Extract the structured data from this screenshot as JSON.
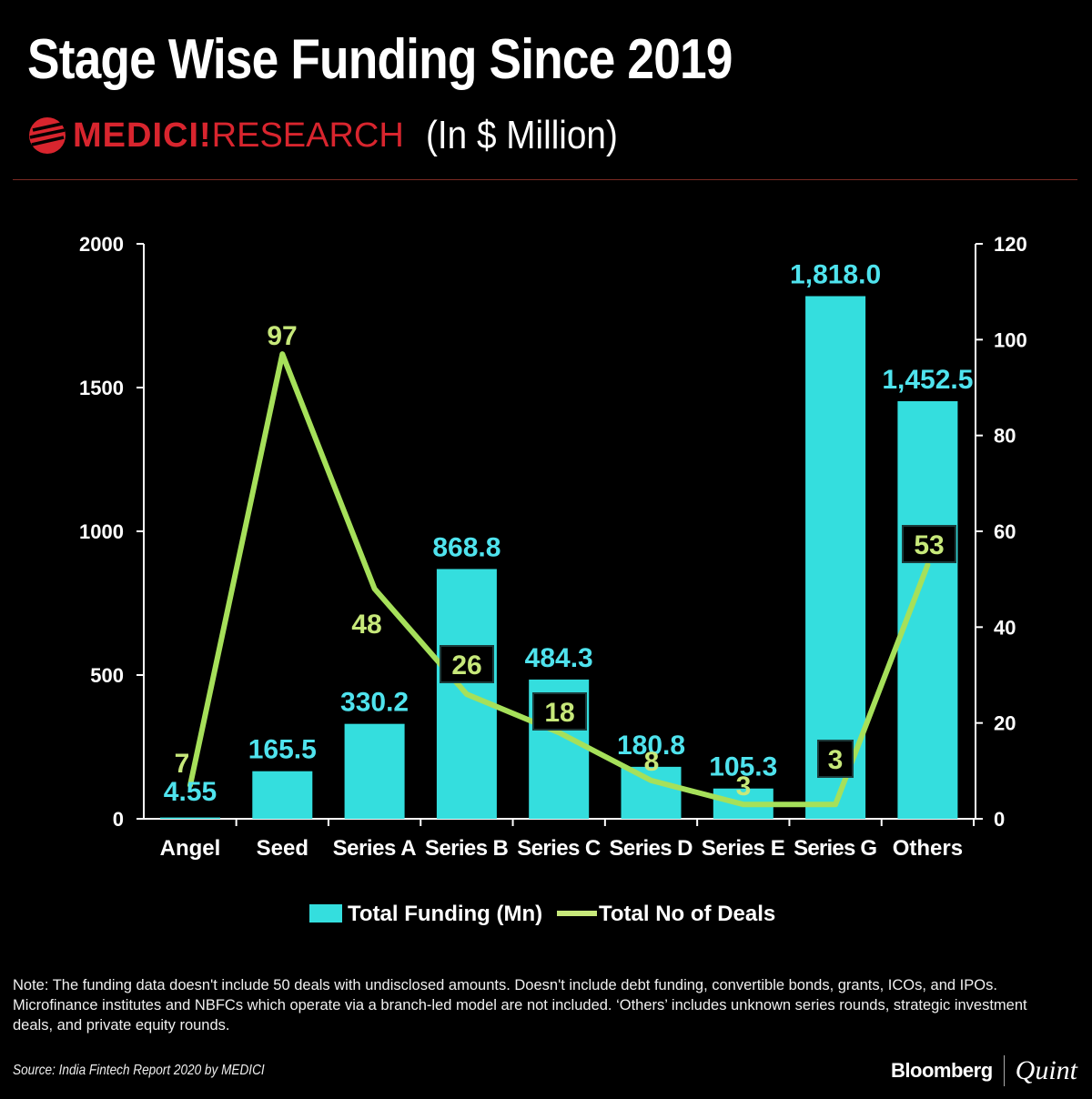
{
  "header": {
    "title": "Stage Wise Funding Since 2019",
    "brand_bold": "MEDICI",
    "brand_mark": "!",
    "brand_light": "RESEARCH",
    "subtitle": "(In $ Million)"
  },
  "colors": {
    "bar": "#34dede",
    "line": "#a6e05a",
    "bar_label": "#4fe3ee",
    "line_label": "#c7e87a",
    "axis": "#ffffff",
    "brand": "#d8252e"
  },
  "chart_data": {
    "type": "bar",
    "title": "Stage Wise Funding Since 2019",
    "categories": [
      "Angel",
      "Seed",
      "Series A",
      "Series B",
      "Series C",
      "Series D",
      "Series E",
      "Series G",
      "Others"
    ],
    "series": [
      {
        "name": "Total Funding (Mn)",
        "type": "bar",
        "axis": "left",
        "values": [
          4.55,
          165.5,
          330.2,
          868.8,
          484.3,
          180.8,
          105.3,
          1818.0,
          1452.5
        ],
        "labels": [
          "4.55",
          "165.5",
          "330.2",
          "868.8",
          "484.3",
          "180.8",
          "105.3",
          "1,818.0",
          "1,452.5"
        ]
      },
      {
        "name": "Total No of Deals",
        "type": "line",
        "axis": "right",
        "values": [
          7,
          97,
          48,
          26,
          18,
          8,
          3,
          3,
          53
        ],
        "labels": [
          "7",
          "97",
          "48",
          "26",
          "18",
          "8",
          "3",
          "3",
          "53"
        ],
        "boxed": [
          false,
          false,
          false,
          true,
          true,
          false,
          false,
          true,
          true
        ]
      }
    ],
    "y_left": {
      "min": 0,
      "max": 2000,
      "ticks": [
        0,
        500,
        1000,
        1500,
        2000
      ]
    },
    "y_right": {
      "min": 0,
      "max": 120,
      "ticks": [
        0,
        20,
        40,
        60,
        80,
        100,
        120
      ]
    },
    "legend": [
      "Total Funding (Mn)",
      "Total No of Deals"
    ],
    "legend_position": "bottom"
  },
  "footer": {
    "note": "Note: The funding data doesn't include 50 deals with undisclosed amounts. Doesn't include debt funding, convertible bonds, grants, ICOs, and IPOs. Microfinance institutes and NBFCs which operate via a branch-led model are not included. ‘Others’ includes unknown series rounds, strategic investment deals, and private equity rounds.",
    "source": "Source: India Fintech Report 2020 by MEDICI",
    "publisher_bold": "Bloomberg",
    "publisher_italic": "Quint"
  }
}
